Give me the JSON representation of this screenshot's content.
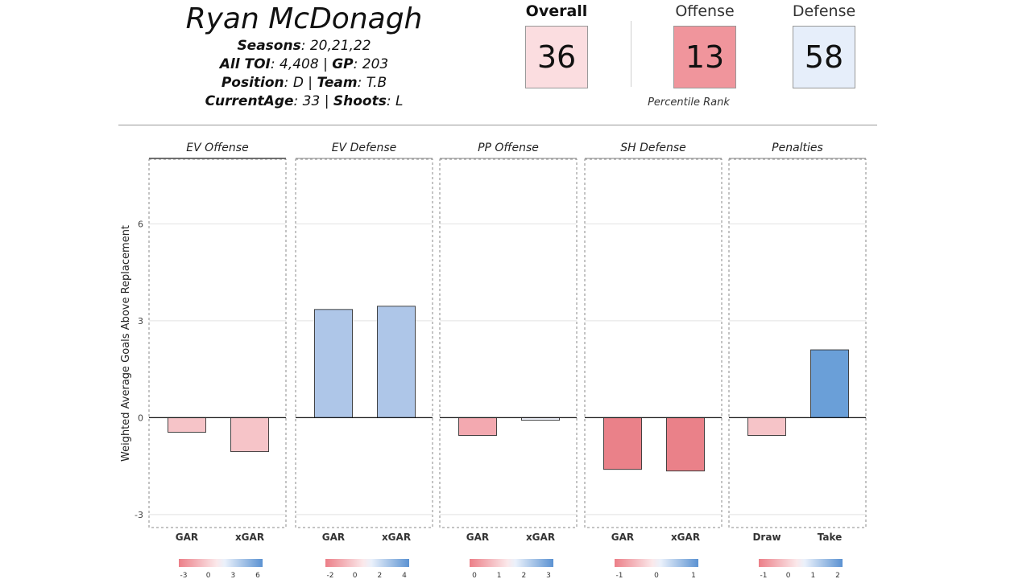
{
  "player": {
    "name": "Ryan McDonagh",
    "seasons_label": "Seasons",
    "seasons": "20,21,22",
    "toi_label": "All TOI",
    "toi": "4,408",
    "gp_label": "GP",
    "gp": "203",
    "position_label": "Position",
    "position": "D",
    "team_label": "Team",
    "team": "T.B",
    "age_label": "CurrentAge",
    "age": "33",
    "shoots_label": "Shoots",
    "shoots": "L"
  },
  "ranks": {
    "overall_label": "Overall",
    "overall": "36",
    "offense_label": "Offense",
    "offense": "13",
    "defense_label": "Defense",
    "defense": "58",
    "caption": "Percentile Rank",
    "colors": {
      "overall": "#fbdde0",
      "offense": "#f0959c",
      "defense": "#e6eefa"
    }
  },
  "chart_data": {
    "type": "bar",
    "ylabel": "Weighted Average Goals Above Replacement",
    "ylim": [
      -3.4,
      8.0
    ],
    "yticks": [
      -3,
      0,
      3,
      6
    ],
    "grid": true,
    "facets": [
      {
        "title": "EV Offense",
        "categories": [
          "GAR",
          "xGAR"
        ],
        "values": [
          -0.45,
          -1.05
        ],
        "colors": [
          "#f6c4c8",
          "#f6c4c8"
        ],
        "legend_ticks": [
          "-3",
          "0",
          "3",
          "6"
        ]
      },
      {
        "title": "EV Defense",
        "categories": [
          "GAR",
          "xGAR"
        ],
        "values": [
          3.35,
          3.45
        ],
        "colors": [
          "#aec6e8",
          "#aec6e8"
        ],
        "legend_ticks": [
          "-2",
          "0",
          "2",
          "4"
        ]
      },
      {
        "title": "PP Offense",
        "categories": [
          "GAR",
          "xGAR"
        ],
        "values": [
          -0.55,
          -0.08
        ],
        "colors": [
          "#f3a9b0",
          "#eef2fa"
        ],
        "legend_ticks": [
          "0",
          "1",
          "2",
          "3"
        ]
      },
      {
        "title": "SH Defense",
        "categories": [
          "GAR",
          "xGAR"
        ],
        "values": [
          -1.6,
          -1.65
        ],
        "colors": [
          "#ea8189",
          "#ea8189"
        ],
        "legend_ticks": [
          "-1",
          "0",
          "1"
        ]
      },
      {
        "title": "Penalties",
        "categories": [
          "Draw",
          "Take"
        ],
        "values": [
          -0.55,
          2.1
        ],
        "colors": [
          "#f6c4c8",
          "#6a9fd8"
        ],
        "legend_ticks": [
          "-1",
          "0",
          "1",
          "2"
        ]
      }
    ]
  }
}
